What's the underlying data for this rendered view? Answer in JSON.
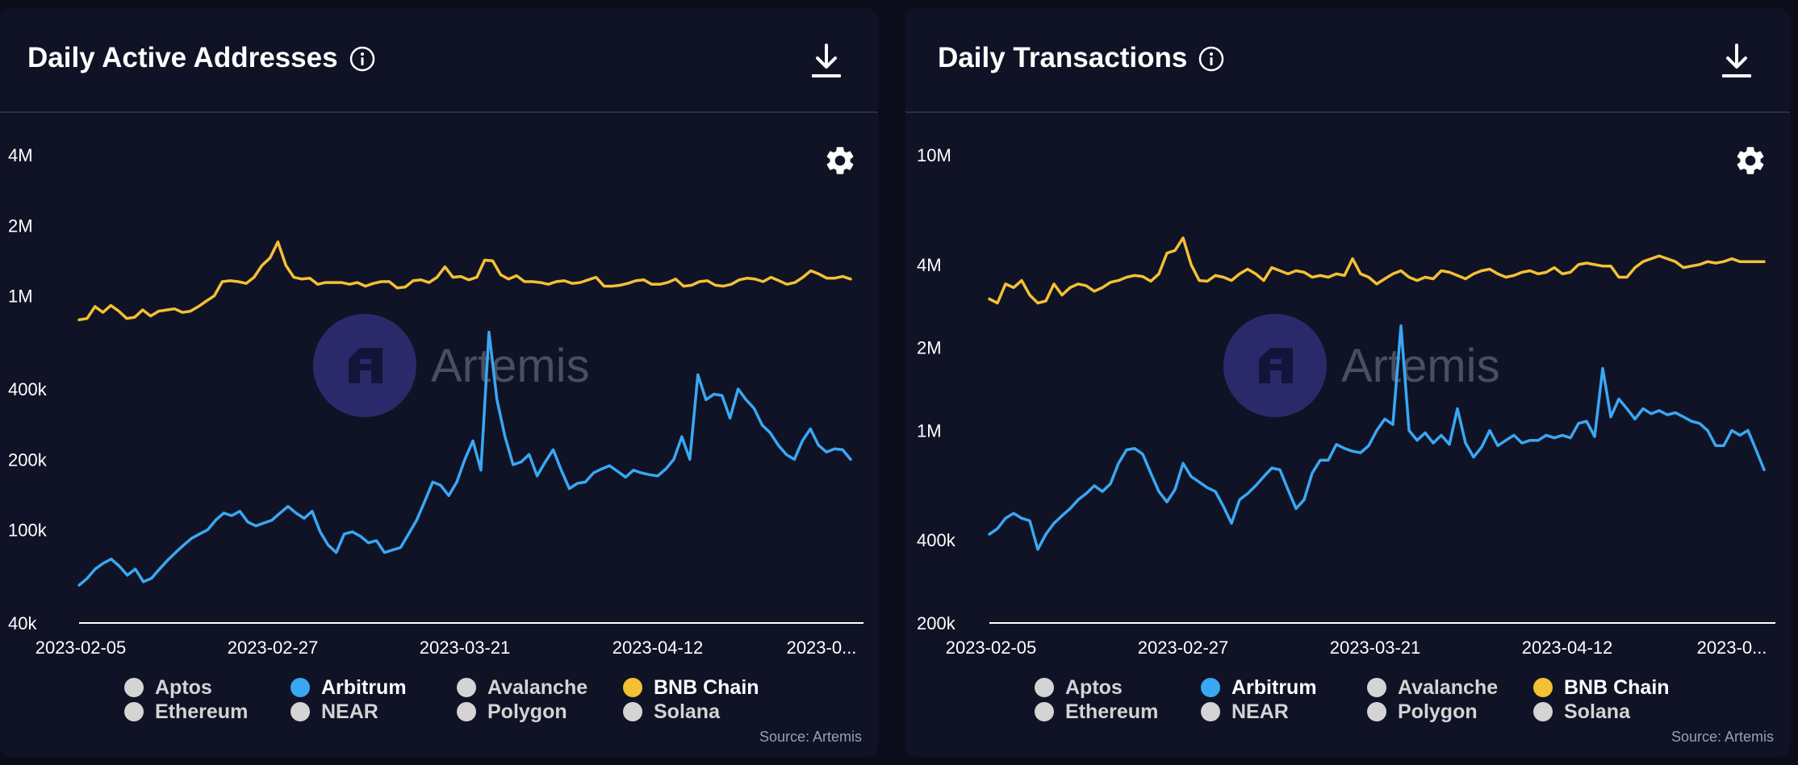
{
  "source_label": "Source: Artemis",
  "watermark": "Artemis",
  "colors": {
    "arbitrum": "#3aa7f3",
    "bnb": "#f4c034",
    "inactive": "#d4d4d4",
    "axis": "#ffffff"
  },
  "icons": {
    "info": "info-icon",
    "download": "download-icon",
    "settings": "gear-icon"
  },
  "legend": [
    {
      "label": "Aptos",
      "active": false
    },
    {
      "label": "Arbitrum",
      "active": true,
      "color": "#3aa7f3"
    },
    {
      "label": "Avalanche",
      "active": false
    },
    {
      "label": "BNB Chain",
      "active": true,
      "color": "#f4c034"
    },
    {
      "label": "Ethereum",
      "active": false
    },
    {
      "label": "NEAR",
      "active": false
    },
    {
      "label": "Polygon",
      "active": false
    },
    {
      "label": "Solana",
      "active": false
    }
  ],
  "left": {
    "title": "Daily Active Addresses"
  },
  "right": {
    "title": "Daily Transactions"
  },
  "chart_data": [
    {
      "type": "line",
      "title": "Daily Active Addresses",
      "yscale": "log",
      "ylim": [
        40000,
        4000000
      ],
      "yticks": [
        {
          "v": 4000000,
          "label": "4M"
        },
        {
          "v": 2000000,
          "label": "2M"
        },
        {
          "v": 1000000,
          "label": "1M"
        },
        {
          "v": 400000,
          "label": "400k"
        },
        {
          "v": 200000,
          "label": "200k"
        },
        {
          "v": 100000,
          "label": "100k"
        },
        {
          "v": 40000,
          "label": "40k"
        }
      ],
      "xticks": [
        "2023-02-05",
        "2023-02-27",
        "2023-03-21",
        "2023-04-12",
        "2023-0..."
      ],
      "x_start": "2023-02-05",
      "series": [
        {
          "name": "BNB Chain",
          "color": "#f4c034",
          "values": [
            790000,
            800000,
            900000,
            850000,
            910000,
            860000,
            800000,
            810000,
            870000,
            820000,
            860000,
            870000,
            880000,
            850000,
            860000,
            900000,
            950000,
            1000000,
            1150000,
            1160000,
            1150000,
            1130000,
            1200000,
            1350000,
            1450000,
            1700000,
            1350000,
            1200000,
            1180000,
            1190000,
            1120000,
            1140000,
            1140000,
            1140000,
            1120000,
            1140000,
            1100000,
            1130000,
            1150000,
            1150000,
            1080000,
            1090000,
            1160000,
            1170000,
            1140000,
            1200000,
            1330000,
            1200000,
            1210000,
            1170000,
            1200000,
            1420000,
            1410000,
            1230000,
            1180000,
            1220000,
            1150000,
            1150000,
            1140000,
            1120000,
            1150000,
            1160000,
            1130000,
            1140000,
            1170000,
            1200000,
            1100000,
            1100000,
            1110000,
            1130000,
            1160000,
            1170000,
            1120000,
            1120000,
            1140000,
            1180000,
            1100000,
            1110000,
            1150000,
            1160000,
            1110000,
            1100000,
            1120000,
            1170000,
            1190000,
            1180000,
            1150000,
            1200000,
            1160000,
            1120000,
            1140000,
            1200000,
            1280000,
            1240000,
            1190000,
            1190000,
            1210000,
            1180000
          ]
        },
        {
          "name": "Arbitrum",
          "color": "#3aa7f3",
          "values": [
            58000,
            62000,
            68000,
            72000,
            75000,
            70000,
            64000,
            68000,
            60000,
            62000,
            68000,
            74000,
            80000,
            86000,
            92000,
            96000,
            100000,
            110000,
            118000,
            115000,
            120000,
            108000,
            104000,
            107000,
            110000,
            118000,
            126000,
            118000,
            112000,
            120000,
            98000,
            86000,
            80000,
            96000,
            98000,
            94000,
            88000,
            90000,
            80000,
            82000,
            84000,
            96000,
            110000,
            132000,
            160000,
            155000,
            140000,
            160000,
            200000,
            240000,
            180000,
            700000,
            360000,
            250000,
            190000,
            195000,
            210000,
            170000,
            195000,
            220000,
            180000,
            150000,
            158000,
            160000,
            175000,
            182000,
            188000,
            178000,
            168000,
            180000,
            175000,
            172000,
            170000,
            182000,
            200000,
            250000,
            200000,
            460000,
            360000,
            380000,
            375000,
            300000,
            400000,
            360000,
            330000,
            280000,
            260000,
            230000,
            210000,
            200000,
            240000,
            270000,
            230000,
            215000,
            222000,
            220000,
            200000
          ]
        }
      ]
    },
    {
      "type": "line",
      "title": "Daily Transactions",
      "yscale": "log",
      "ylim": [
        200000,
        10000000
      ],
      "yticks": [
        {
          "v": 10000000,
          "label": "10M"
        },
        {
          "v": 4000000,
          "label": "4M"
        },
        {
          "v": 2000000,
          "label": "2M"
        },
        {
          "v": 1000000,
          "label": "1M"
        },
        {
          "v": 400000,
          "label": "400k"
        },
        {
          "v": 200000,
          "label": "200k"
        }
      ],
      "xticks": [
        "2023-02-05",
        "2023-02-27",
        "2023-03-21",
        "2023-04-12",
        "2023-0..."
      ],
      "x_start": "2023-02-05",
      "series": [
        {
          "name": "BNB Chain",
          "color": "#f4c034",
          "values": [
            3000000,
            2900000,
            3400000,
            3300000,
            3500000,
            3100000,
            2900000,
            2950000,
            3400000,
            3100000,
            3300000,
            3400000,
            3350000,
            3200000,
            3300000,
            3450000,
            3500000,
            3600000,
            3650000,
            3620000,
            3480000,
            3700000,
            4400000,
            4500000,
            5000000,
            4000000,
            3500000,
            3480000,
            3650000,
            3600000,
            3500000,
            3700000,
            3850000,
            3700000,
            3500000,
            3900000,
            3800000,
            3700000,
            3800000,
            3750000,
            3600000,
            3650000,
            3600000,
            3700000,
            3650000,
            4200000,
            3700000,
            3600000,
            3400000,
            3550000,
            3700000,
            3800000,
            3600000,
            3500000,
            3600000,
            3550000,
            3800000,
            3750000,
            3650000,
            3550000,
            3700000,
            3800000,
            3850000,
            3700000,
            3600000,
            3650000,
            3750000,
            3800000,
            3700000,
            3750000,
            3900000,
            3700000,
            3750000,
            4000000,
            4050000,
            4000000,
            3950000,
            3950000,
            3600000,
            3600000,
            3900000,
            4100000,
            4200000,
            4300000,
            4200000,
            4100000,
            3900000,
            3950000,
            4000000,
            4100000,
            4050000,
            4100000,
            4200000,
            4100000,
            4100000,
            4100000,
            4100000
          ]
        },
        {
          "name": "Arbitrum",
          "color": "#3aa7f3",
          "values": [
            420000,
            440000,
            480000,
            500000,
            480000,
            470000,
            370000,
            420000,
            460000,
            490000,
            520000,
            560000,
            590000,
            630000,
            600000,
            640000,
            760000,
            850000,
            860000,
            820000,
            700000,
            600000,
            550000,
            610000,
            760000,
            680000,
            650000,
            620000,
            600000,
            530000,
            460000,
            560000,
            590000,
            630000,
            680000,
            730000,
            720000,
            610000,
            520000,
            560000,
            700000,
            780000,
            780000,
            890000,
            860000,
            840000,
            830000,
            880000,
            1000000,
            1100000,
            1050000,
            2400000,
            1000000,
            920000,
            980000,
            900000,
            960000,
            890000,
            1200000,
            900000,
            800000,
            870000,
            1000000,
            880000,
            920000,
            960000,
            900000,
            920000,
            920000,
            960000,
            940000,
            960000,
            940000,
            1060000,
            1080000,
            950000,
            1680000,
            1120000,
            1300000,
            1200000,
            1100000,
            1200000,
            1150000,
            1180000,
            1140000,
            1160000,
            1120000,
            1080000,
            1060000,
            1000000,
            880000,
            880000,
            1000000,
            960000,
            1000000,
            850000,
            720000
          ]
        }
      ]
    }
  ]
}
